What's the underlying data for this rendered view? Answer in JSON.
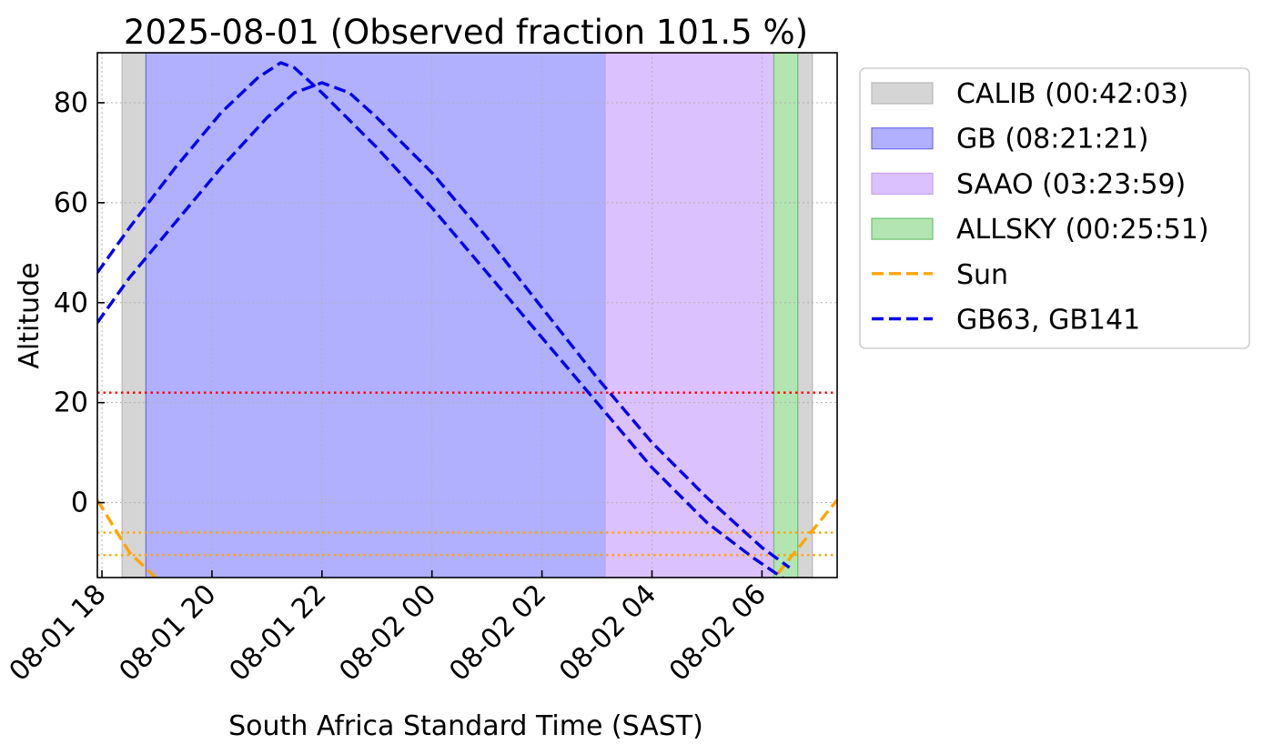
{
  "chart_data": {
    "type": "line",
    "title": "2025-08-01 (Observed fraction 101.5 %)",
    "xlabel": "South Africa Standard Time (SAST)",
    "ylabel": "Altitude",
    "xlim": [
      "2025-08-01 17:55",
      "2025-08-02 07:22"
    ],
    "ylim": [
      -15,
      90
    ],
    "x_ticks": [
      {
        "t": "2025-08-01 18:00",
        "label": "08-01 18"
      },
      {
        "t": "2025-08-01 20:00",
        "label": "08-01 20"
      },
      {
        "t": "2025-08-01 22:00",
        "label": "08-01 22"
      },
      {
        "t": "2025-08-02 00:00",
        "label": "08-02 00"
      },
      {
        "t": "2025-08-02 02:00",
        "label": "08-02 02"
      },
      {
        "t": "2025-08-02 04:00",
        "label": "08-02 04"
      },
      {
        "t": "2025-08-02 06:00",
        "label": "08-02 06"
      }
    ],
    "y_ticks": [
      0,
      20,
      40,
      60,
      80
    ],
    "grid": true,
    "legend_position": "outside-right",
    "spans": [
      {
        "name": "CALIB",
        "duration": "00:42:03",
        "color": "#d5d5d5",
        "edge": "#b8b8b8",
        "opacity": 1,
        "ranges": [
          [
            "2025-08-01 18:22",
            "2025-08-01 18:48"
          ],
          [
            "2025-08-02 06:39",
            "2025-08-02 06:55"
          ]
        ]
      },
      {
        "name": "GB",
        "duration": "08:21:21",
        "color": "#b0b0ff",
        "edge": "#6e6ee6",
        "opacity": 1,
        "ranges": [
          [
            "2025-08-01 18:48",
            "2025-08-02 03:09"
          ]
        ]
      },
      {
        "name": "SAAO",
        "duration": "03:23:59",
        "color": "#dcc1ff",
        "edge": "#c5a5f5",
        "opacity": 1,
        "ranges": [
          [
            "2025-08-02 03:09",
            "2025-08-02 06:33"
          ]
        ]
      },
      {
        "name": "ALLSKY",
        "duration": "00:25:51",
        "color": "#b2e5b2",
        "edge": "#6cc06c",
        "opacity": 1,
        "ranges": [
          [
            "2025-08-02 06:13",
            "2025-08-02 06:39"
          ]
        ]
      }
    ],
    "hlines": [
      {
        "y": 22,
        "color": "#ff0000",
        "style": "dotted"
      },
      {
        "y": -6,
        "color": "#ffa500",
        "style": "dotted"
      },
      {
        "y": -10.5,
        "color": "#ffa500",
        "style": "dotted"
      }
    ],
    "series": [
      {
        "name": "Sun",
        "color": "#ffa500",
        "style": "dashed",
        "x": [
          "2025-08-01 17:55",
          "2025-08-01 18:30",
          "2025-08-01 19:10"
        ],
        "y": [
          0.5,
          -10,
          -17
        ]
      },
      {
        "name": "Sun",
        "color": "#ffa500",
        "style": "dashed",
        "x": [
          "2025-08-02 06:05",
          "2025-08-02 06:40",
          "2025-08-02 07:22"
        ],
        "y": [
          -17,
          -9,
          0.5
        ]
      },
      {
        "name": "GB63",
        "color": "#0000ee",
        "style": "dashed",
        "x": [
          "2025-08-01 17:55",
          "2025-08-01 18:30",
          "2025-08-01 19:20",
          "2025-08-01 20:10",
          "2025-08-01 20:50",
          "2025-08-01 21:15",
          "2025-08-01 21:30",
          "2025-08-01 22:00",
          "2025-08-01 23:00",
          "2025-08-02 00:00",
          "2025-08-02 01:00",
          "2025-08-02 02:00",
          "2025-08-02 03:00",
          "2025-08-02 04:00",
          "2025-08-02 05:00",
          "2025-08-02 05:50",
          "2025-08-02 06:30"
        ],
        "y": [
          46,
          55,
          67,
          78,
          85,
          88,
          87,
          82,
          71,
          59,
          46,
          33,
          20,
          7,
          -4,
          -11,
          -16
        ]
      },
      {
        "name": "GB141",
        "color": "#0000ee",
        "style": "dashed",
        "x": [
          "2025-08-01 17:55",
          "2025-08-01 18:30",
          "2025-08-01 19:20",
          "2025-08-01 20:10",
          "2025-08-01 21:00",
          "2025-08-01 21:30",
          "2025-08-01 22:00",
          "2025-08-01 22:30",
          "2025-08-01 23:00",
          "2025-08-02 00:00",
          "2025-08-02 01:00",
          "2025-08-02 02:00",
          "2025-08-02 03:00",
          "2025-08-02 04:00",
          "2025-08-02 05:00",
          "2025-08-02 06:00",
          "2025-08-02 06:30"
        ],
        "y": [
          36,
          45,
          56,
          67,
          77,
          82,
          84,
          82,
          77,
          66,
          53,
          39,
          25,
          12,
          1,
          -9,
          -13
        ]
      }
    ],
    "legend": [
      {
        "label": "CALIB (00:42:03)",
        "kind": "patch",
        "color": "#d5d5d5",
        "edge": "#b8b8b8"
      },
      {
        "label": "GB (08:21:21)",
        "kind": "patch",
        "color": "#b0b0ff",
        "edge": "#6e6ee6"
      },
      {
        "label": "SAAO (03:23:59)",
        "kind": "patch",
        "color": "#dcc1ff",
        "edge": "#c5a5f5"
      },
      {
        "label": "ALLSKY (00:25:51)",
        "kind": "patch",
        "color": "#b2e5b2",
        "edge": "#6cc06c"
      },
      {
        "label": "Sun",
        "kind": "line",
        "color": "#ffa500"
      },
      {
        "label": "GB63, GB141",
        "kind": "line",
        "color": "#0000ee"
      }
    ]
  }
}
